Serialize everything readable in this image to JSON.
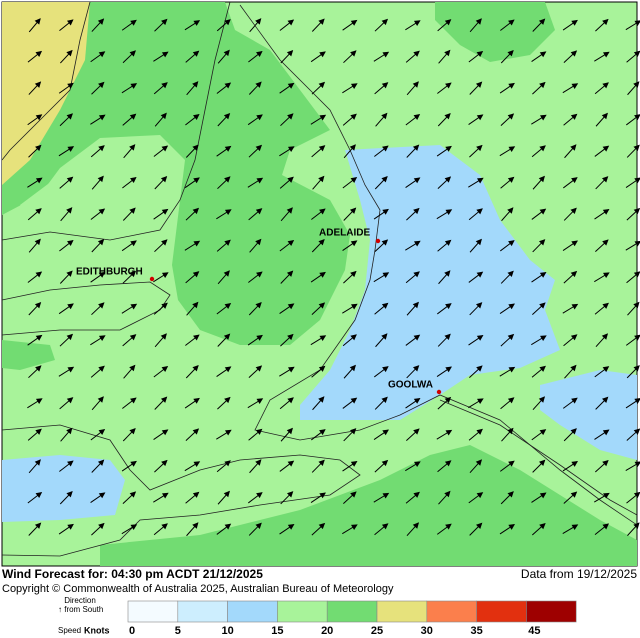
{
  "map": {
    "places": [
      {
        "name": "ADELAIDE"
      },
      {
        "name": "EDITHBURGH"
      },
      {
        "name": "GOOLWA"
      }
    ]
  },
  "footer": {
    "title": "Wind Forecast for: 04:30 pm ACDT 21/12/2025",
    "source": "Data from 19/12/2025",
    "copyright": "Copyright © Commonwealth of Australia 2025, Australian Bureau of Meteorology"
  },
  "legend": {
    "direction_label": "Direction",
    "direction_note": "↑ from South",
    "speed_label": "Speed",
    "speed_unit": "Knots",
    "bins": [
      {
        "color": "#f4fbff"
      },
      {
        "color": "#cdeefe"
      },
      {
        "color": "#a3d9fb"
      },
      {
        "color": "#a8f39a"
      },
      {
        "color": "#72dc72"
      },
      {
        "color": "#e6e27c"
      },
      {
        "color": "#fb7f4c"
      },
      {
        "color": "#e2300f"
      },
      {
        "color": "#9e0000"
      }
    ],
    "ticks": [
      0,
      5,
      10,
      15,
      20,
      25,
      30,
      35,
      45
    ]
  }
}
